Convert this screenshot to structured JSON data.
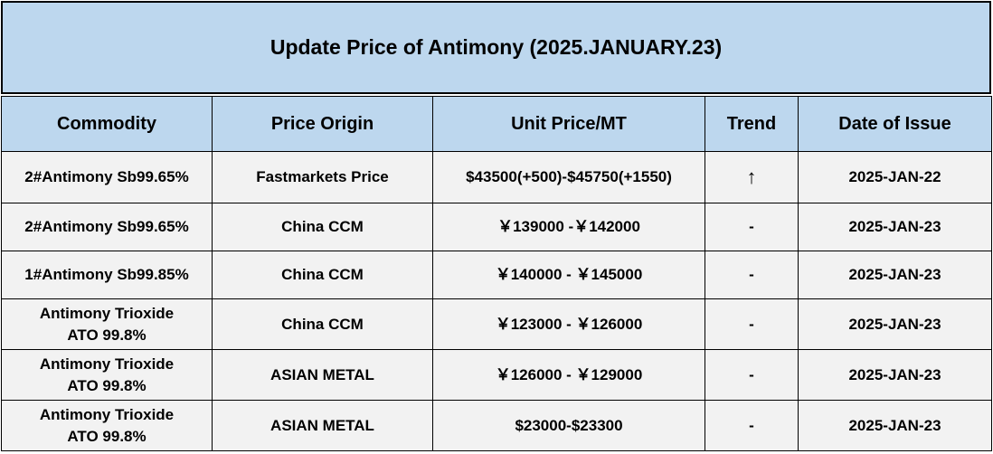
{
  "title": "Update Price of Antimony (2025.JANUARY.23)",
  "headers": {
    "commodity": "Commodity",
    "origin": "Price Origin",
    "price": "Unit Price/MT",
    "trend": "Trend",
    "date": "Date of Issue"
  },
  "rows": [
    {
      "commodity_line1": "2#Antimony  Sb99.65%",
      "commodity_line2": "",
      "origin": "Fastmarkets Price",
      "price": "$43500(+500)-$45750(+1550)",
      "trend": "↑",
      "date": "2025-JAN-22"
    },
    {
      "commodity_line1": "2#Antimony  Sb99.65%",
      "commodity_line2": "",
      "origin": "China CCM",
      "price": "￥139000 -￥142000",
      "trend": "-",
      "date": "2025-JAN-23"
    },
    {
      "commodity_line1": "1#Antimony  Sb99.85%",
      "commodity_line2": "",
      "origin": "China CCM",
      "price": "￥140000 - ￥145000",
      "trend": "-",
      "date": "2025-JAN-23"
    },
    {
      "commodity_line1": "Antimony Trioxide",
      "commodity_line2": "ATO 99.8%",
      "origin": "China CCM",
      "price": "￥123000 - ￥126000",
      "trend": "-",
      "date": "2025-JAN-23"
    },
    {
      "commodity_line1": "Antimony Trioxide",
      "commodity_line2": "ATO 99.8%",
      "origin": "ASIAN METAL",
      "price": "￥126000 - ￥129000",
      "trend": "-",
      "date": "2025-JAN-23"
    },
    {
      "commodity_line1": "Antimony Trioxide",
      "commodity_line2": "ATO 99.8%",
      "origin": "ASIAN METAL",
      "price": "$23000-$23300",
      "trend": "-",
      "date": "2025-JAN-23"
    }
  ],
  "colors": {
    "header_fill": "#bdd7ee",
    "body_fill": "#f2f2f2"
  }
}
